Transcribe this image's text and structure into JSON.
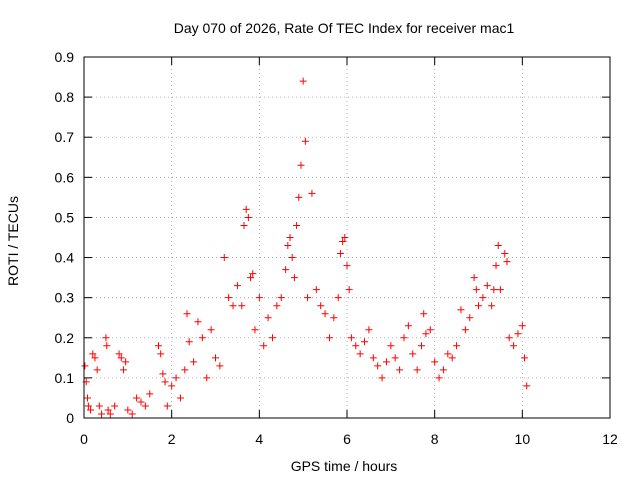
{
  "chart_data": {
    "type": "scatter",
    "title": "Day 070 of 2026, Rate Of TEC Index for receiver mac1",
    "xlabel": "GPS time / hours",
    "ylabel": "ROTI / TECUs",
    "xlim": [
      0,
      12
    ],
    "ylim": [
      0,
      0.9
    ],
    "x_ticks": [
      0,
      2,
      4,
      6,
      8,
      10,
      12
    ],
    "x_tick_labels": [
      "0",
      "2",
      "4",
      "6",
      "8",
      "10",
      "12"
    ],
    "y_ticks": [
      0,
      0.1,
      0.2,
      0.3,
      0.4,
      0.5,
      0.6,
      0.7,
      0.8,
      0.9
    ],
    "y_tick_labels": [
      "0",
      "0.1",
      "0.2",
      "0.3",
      "0.4",
      "0.5",
      "0.6",
      "0.7",
      "0.8",
      "0.9"
    ],
    "grid": true,
    "marker": "+",
    "marker_color": "#ff0000",
    "series": [
      {
        "name": "ROTI",
        "points": [
          [
            0.02,
            0.13
          ],
          [
            0.05,
            0.09
          ],
          [
            0.08,
            0.05
          ],
          [
            0.1,
            0.03
          ],
          [
            0.15,
            0.02
          ],
          [
            0.2,
            0.16
          ],
          [
            0.25,
            0.15
          ],
          [
            0.3,
            0.12
          ],
          [
            0.35,
            0.03
          ],
          [
            0.4,
            0.01
          ],
          [
            0.5,
            0.2
          ],
          [
            0.52,
            0.18
          ],
          [
            0.55,
            0.02
          ],
          [
            0.6,
            0.01
          ],
          [
            0.7,
            0.03
          ],
          [
            0.8,
            0.16
          ],
          [
            0.85,
            0.15
          ],
          [
            0.9,
            0.12
          ],
          [
            0.95,
            0.14
          ],
          [
            1.0,
            0.02
          ],
          [
            1.1,
            0.01
          ],
          [
            1.2,
            0.05
          ],
          [
            1.3,
            0.04
          ],
          [
            1.4,
            0.03
          ],
          [
            1.5,
            0.06
          ],
          [
            1.7,
            0.18
          ],
          [
            1.75,
            0.16
          ],
          [
            1.8,
            0.11
          ],
          [
            1.85,
            0.09
          ],
          [
            1.9,
            0.03
          ],
          [
            2.0,
            0.08
          ],
          [
            2.1,
            0.1
          ],
          [
            2.2,
            0.05
          ],
          [
            2.3,
            0.12
          ],
          [
            2.35,
            0.26
          ],
          [
            2.4,
            0.19
          ],
          [
            2.5,
            0.14
          ],
          [
            2.6,
            0.24
          ],
          [
            2.7,
            0.2
          ],
          [
            2.8,
            0.1
          ],
          [
            2.9,
            0.22
          ],
          [
            3.0,
            0.15
          ],
          [
            3.1,
            0.13
          ],
          [
            3.2,
            0.4
          ],
          [
            3.3,
            0.3
          ],
          [
            3.4,
            0.28
          ],
          [
            3.5,
            0.33
          ],
          [
            3.6,
            0.28
          ],
          [
            3.65,
            0.48
          ],
          [
            3.7,
            0.52
          ],
          [
            3.75,
            0.5
          ],
          [
            3.8,
            0.35
          ],
          [
            3.85,
            0.36
          ],
          [
            3.9,
            0.22
          ],
          [
            4.0,
            0.3
          ],
          [
            4.1,
            0.18
          ],
          [
            4.2,
            0.25
          ],
          [
            4.3,
            0.2
          ],
          [
            4.4,
            0.28
          ],
          [
            4.5,
            0.3
          ],
          [
            4.6,
            0.37
          ],
          [
            4.65,
            0.43
          ],
          [
            4.7,
            0.45
          ],
          [
            4.75,
            0.4
          ],
          [
            4.8,
            0.35
          ],
          [
            4.85,
            0.48
          ],
          [
            4.9,
            0.55
          ],
          [
            4.95,
            0.63
          ],
          [
            5.0,
            0.84
          ],
          [
            5.05,
            0.69
          ],
          [
            5.1,
            0.3
          ],
          [
            5.2,
            0.56
          ],
          [
            5.3,
            0.32
          ],
          [
            5.4,
            0.28
          ],
          [
            5.5,
            0.26
          ],
          [
            5.6,
            0.2
          ],
          [
            5.7,
            0.25
          ],
          [
            5.8,
            0.3
          ],
          [
            5.85,
            0.41
          ],
          [
            5.9,
            0.44
          ],
          [
            5.95,
            0.45
          ],
          [
            6.0,
            0.38
          ],
          [
            6.05,
            0.32
          ],
          [
            6.1,
            0.2
          ],
          [
            6.2,
            0.18
          ],
          [
            6.3,
            0.16
          ],
          [
            6.4,
            0.19
          ],
          [
            6.5,
            0.22
          ],
          [
            6.6,
            0.15
          ],
          [
            6.7,
            0.13
          ],
          [
            6.8,
            0.1
          ],
          [
            6.9,
            0.14
          ],
          [
            7.0,
            0.18
          ],
          [
            7.1,
            0.15
          ],
          [
            7.2,
            0.12
          ],
          [
            7.3,
            0.2
          ],
          [
            7.4,
            0.23
          ],
          [
            7.5,
            0.16
          ],
          [
            7.6,
            0.12
          ],
          [
            7.7,
            0.18
          ],
          [
            7.75,
            0.26
          ],
          [
            7.8,
            0.21
          ],
          [
            7.9,
            0.22
          ],
          [
            8.0,
            0.14
          ],
          [
            8.1,
            0.1
          ],
          [
            8.2,
            0.12
          ],
          [
            8.3,
            0.16
          ],
          [
            8.4,
            0.15
          ],
          [
            8.5,
            0.18
          ],
          [
            8.6,
            0.27
          ],
          [
            8.7,
            0.22
          ],
          [
            8.8,
            0.25
          ],
          [
            8.9,
            0.35
          ],
          [
            8.95,
            0.32
          ],
          [
            9.0,
            0.28
          ],
          [
            9.1,
            0.3
          ],
          [
            9.2,
            0.33
          ],
          [
            9.3,
            0.28
          ],
          [
            9.35,
            0.32
          ],
          [
            9.4,
            0.38
          ],
          [
            9.45,
            0.43
          ],
          [
            9.5,
            0.32
          ],
          [
            9.6,
            0.41
          ],
          [
            9.65,
            0.39
          ],
          [
            9.7,
            0.2
          ],
          [
            9.8,
            0.18
          ],
          [
            9.9,
            0.21
          ],
          [
            10.0,
            0.23
          ],
          [
            10.05,
            0.15
          ],
          [
            10.1,
            0.08
          ]
        ]
      }
    ]
  }
}
